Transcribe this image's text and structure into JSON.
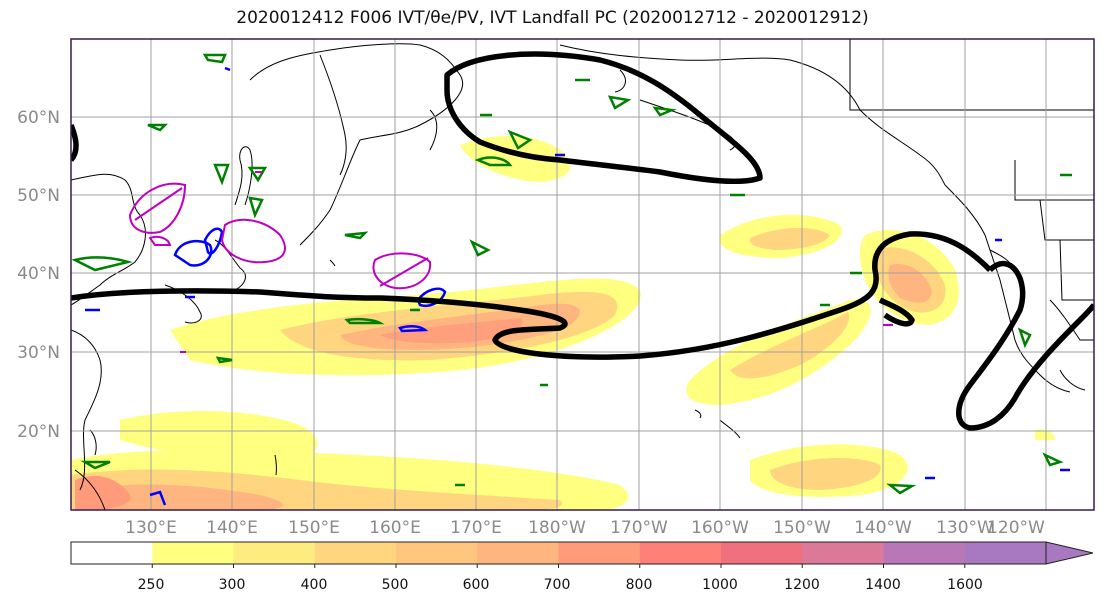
{
  "title": "2020012412 F006 IVT/θe/PV, IVT Landfall PC (2020012712 - 2020012912)",
  "latitude_labels": [
    "60°N",
    "50°N",
    "40°N",
    "30°N",
    "20°N"
  ],
  "longitude_labels": [
    "130°E",
    "140°E",
    "150°E",
    "160°E",
    "170°E",
    "180°W",
    "170°W",
    "160°W",
    "150°W",
    "140°W",
    "130°W",
    "120°W"
  ],
  "colorbar": {
    "levels": [
      "250",
      "300",
      "400",
      "500",
      "600",
      "700",
      "800",
      "1000",
      "1200",
      "1400",
      "1600"
    ],
    "colors": [
      "#ffffff",
      "#ffff80",
      "#ffec80",
      "#ffd580",
      "#ffc680",
      "#ffb57f",
      "#ff9a7a",
      "#ff8078",
      "#f07080",
      "#dc7898",
      "#b878b8",
      "#a878c0"
    ]
  },
  "contour_colors": {
    "ivt_landfall_pc": "#000000",
    "theta_e": "#008000",
    "pv_negative": "#0000ff",
    "pv_positive": "#c000c0"
  }
}
